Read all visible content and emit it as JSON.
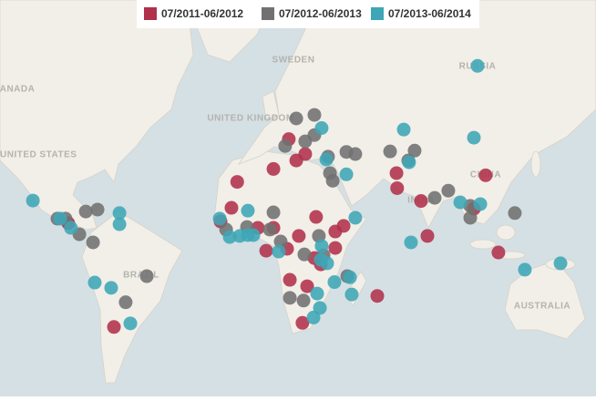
{
  "map": {
    "labels": [
      "CANADA",
      "UNITED STATES",
      "SWEDEN",
      "UNITED KINGDOM",
      "RUSSIA",
      "CHINA",
      "INDIA",
      "BRAZIL",
      "AUSTRALIA"
    ],
    "series": [
      {
        "name": "07/2011-06/2012",
        "color": "#b0314b",
        "lon": [
          16.2,
          23.9,
          19.7,
          9,
          -8,
          66.7,
          67,
          108.5,
          78.2,
          103,
          81.2,
          114.5,
          -87.2,
          -15.8,
          -10.7,
          1.7,
          9,
          5.6,
          15.4,
          20.9,
          29,
          38,
          41.9,
          38,
          28.2,
          31.2,
          16.7,
          24.8,
          57.7,
          22.6,
          -65.8
        ],
        "lat": [
          41,
          35.5,
          33,
          29.6,
          24.2,
          27.9,
          21.5,
          27,
          15.8,
          12.3,
          -0.4,
          -8.1,
          5.6,
          6.4,
          12.7,
          3.4,
          3.4,
          -7.3,
          -6.4,
          -0.4,
          8.5,
          1.7,
          4.3,
          -6,
          -10.7,
          -13.6,
          -20.5,
          -23.3,
          -27.4,
          -38,
          -39.5
        ]
      },
      {
        "name": "07/2012-06/2013",
        "color": "#717171",
        "lon": [
          19.7,
          28.2,
          28.2,
          23.9,
          14.5,
          43.2,
          47.4,
          34.6,
          35.5,
          36.8,
          63.7,
          75.2,
          72.2,
          91,
          84.6,
          101.3,
          101.3,
          122.2,
          -92.3,
          -88.5,
          -79,
          -73.5,
          -82,
          -75.6,
          9,
          -3.4,
          -13.2,
          7.3,
          12.4,
          23.5,
          30.3,
          32.5,
          43.6,
          16.7,
          23.1,
          -60.3,
          -50.4
        ],
        "lat": [
          47.9,
          49,
          42.4,
          40.2,
          38.5,
          36.3,
          35.5,
          34.5,
          27.9,
          24.7,
          36.5,
          36.8,
          33,
          20.4,
          17.2,
          13.6,
          8.1,
          10.3,
          7.7,
          7.7,
          11,
          11.9,
          0.4,
          -3.4,
          10.6,
          3.8,
          2.6,
          2.6,
          -3,
          -9,
          -0.4,
          -9.4,
          -18.9,
          -28.2,
          -29.3,
          -30,
          -18.9
        ]
      },
      {
        "name": "07/2013-06/2014",
        "color": "#3ea6b6",
        "lon": [
          104.7,
          70.1,
          103,
          31.6,
          33.8,
          43.2,
          72.6,
          47.4,
          73.5,
          96.6,
          106,
          126.9,
          143.6,
          -103.8,
          -91,
          -86,
          -63.2,
          -63.2,
          -74.8,
          -67.1,
          -58.1,
          -3,
          -16.2,
          -11.5,
          -6.8,
          -3,
          -0.4,
          11.5,
          31.6,
          31.2,
          34.2,
          44.9,
          37.6,
          45.7,
          29.5,
          30.8,
          27.8
        ],
        "lat": [
          61.9,
          44.3,
          41.5,
          44.8,
          33.4,
          27.4,
          32.3,
          8.1,
          -3.4,
          15.2,
          14.4,
          -16,
          -13.1,
          16,
          7.7,
          3.4,
          10.3,
          5.1,
          -21.7,
          -24,
          -38.2,
          11.4,
          7.7,
          -0.9,
          -0.4,
          0,
          0,
          -7.7,
          -5.1,
          -11.5,
          -13.1,
          -19.4,
          -21.5,
          -26.8,
          -26.4,
          -32.3,
          -36
        ]
      }
    ]
  }
}
